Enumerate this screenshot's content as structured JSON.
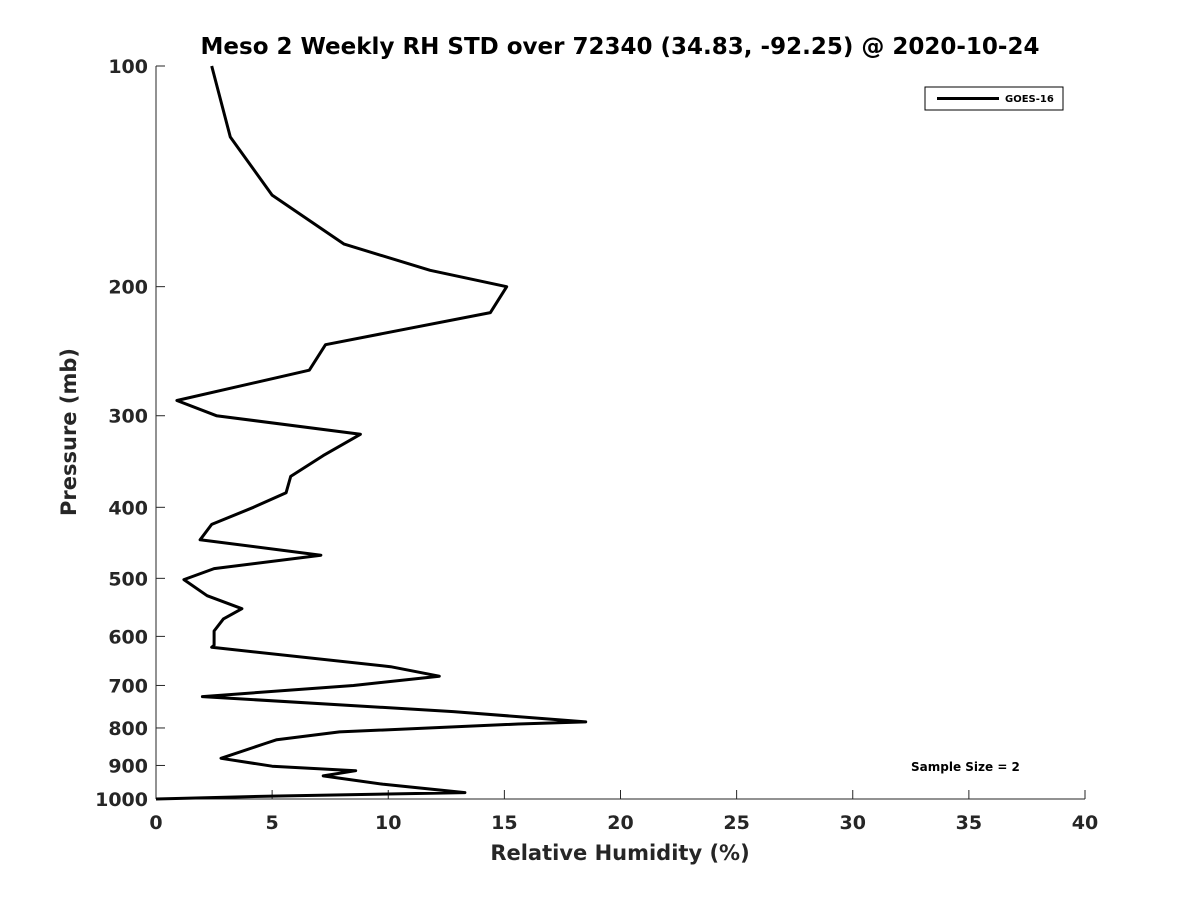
{
  "chart_data": {
    "type": "line",
    "title": "Meso 2 Weekly RH STD over 72340 (34.83, -92.25) @ 2020-10-24",
    "xlabel": "Relative Humidity (%)",
    "ylabel": "Pressure (mb)",
    "xlim": [
      0,
      40
    ],
    "ylim": [
      100,
      1000
    ],
    "y_scale": "log",
    "y_reversed": true,
    "x_ticks": [
      0,
      5,
      10,
      15,
      20,
      25,
      30,
      35,
      40
    ],
    "y_ticks": [
      100,
      200,
      300,
      400,
      500,
      600,
      700,
      800,
      900,
      1000
    ],
    "grid": false,
    "legend": {
      "position": "top-right",
      "entries": [
        "GOES-16"
      ]
    },
    "annotation": "Sample Size = 2",
    "series": [
      {
        "name": "GOES-16",
        "color": "#000000",
        "points": [
          [
            2.4,
            100
          ],
          [
            3.2,
            125
          ],
          [
            5.0,
            150
          ],
          [
            8.1,
            175
          ],
          [
            11.8,
            190
          ],
          [
            15.1,
            200
          ],
          [
            14.4,
            217
          ],
          [
            7.3,
            240
          ],
          [
            6.6,
            260
          ],
          [
            0.9,
            286
          ],
          [
            2.6,
            300
          ],
          [
            8.8,
            318
          ],
          [
            7.2,
            340
          ],
          [
            5.8,
            363
          ],
          [
            5.6,
            382
          ],
          [
            4.2,
            400
          ],
          [
            2.4,
            422
          ],
          [
            1.9,
            443
          ],
          [
            7.1,
            465
          ],
          [
            2.5,
            485
          ],
          [
            1.2,
            502
          ],
          [
            2.2,
            528
          ],
          [
            3.7,
            550
          ],
          [
            2.9,
            568
          ],
          [
            2.5,
            590
          ],
          [
            2.5,
            617
          ],
          [
            2.4,
            621
          ],
          [
            10.1,
            660
          ],
          [
            12.2,
            680
          ],
          [
            8.5,
            700
          ],
          [
            2.0,
            725
          ],
          [
            12.8,
            760
          ],
          [
            18.5,
            785
          ],
          [
            15.6,
            790
          ],
          [
            7.9,
            810
          ],
          [
            5.2,
            830
          ],
          [
            4.7,
            840
          ],
          [
            2.8,
            880
          ],
          [
            5.0,
            902
          ],
          [
            8.6,
            915
          ],
          [
            7.2,
            930
          ],
          [
            9.8,
            955
          ],
          [
            13.3,
            980
          ],
          [
            5.0,
            991
          ],
          [
            0.0,
            1000
          ]
        ]
      }
    ]
  }
}
